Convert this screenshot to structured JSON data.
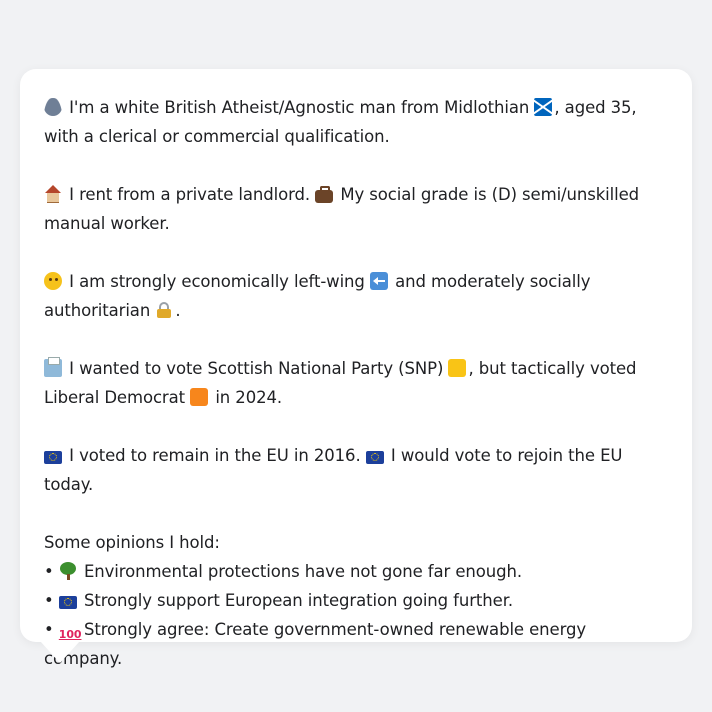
{
  "card": {
    "p1": {
      "icon1": "person-icon",
      "text1": "I'm a white British Atheist/Agnostic man from Midlothian",
      "icon2": "scotland-flag-icon",
      "text2": ", aged 35,",
      "text3": "with a clerical or commercial qualification."
    },
    "p2": {
      "icon1": "house-icon",
      "text1": "I rent from a private landlord.",
      "icon2": "briefcase-icon",
      "text2": "My social grade is (D) semi/unskilled",
      "text3": "manual worker."
    },
    "p3": {
      "icon1": "thinking-face-icon",
      "text1": "I am strongly economically left-wing",
      "icon2": "left-arrow-icon",
      "text2": "and moderately socially",
      "text3": "authoritarian",
      "icon3": "lock-icon",
      "text4": "."
    },
    "p4": {
      "icon1": "ballot-box-icon",
      "text1": "I wanted to vote Scottish National Party (SNP)",
      "icon2": "yellow-square-icon",
      "text2": ", but tactically voted",
      "text3": "Liberal Democrat",
      "icon3": "orange-square-icon",
      "text4": "in 2024."
    },
    "p5": {
      "icon1": "eu-flag-icon",
      "text1": "I voted to remain in the EU in 2016.",
      "icon2": "eu-flag-icon",
      "text2": "I would vote to rejoin the EU today."
    },
    "opinions": {
      "heading": "Some opinions I hold:",
      "bullet": "•",
      "items": [
        {
          "icon": "tree-icon",
          "text": "Environmental protections have not gone far enough."
        },
        {
          "icon": "eu-flag-icon",
          "text": "Strongly support European integration going further."
        },
        {
          "icon": "hundred-points-icon",
          "icon_text": "100",
          "text": "Strongly agree: Create government-owned renewable energy company."
        }
      ]
    }
  },
  "colors": {
    "background": "#f1f2f4",
    "card": "#ffffff",
    "text": "#202124"
  }
}
